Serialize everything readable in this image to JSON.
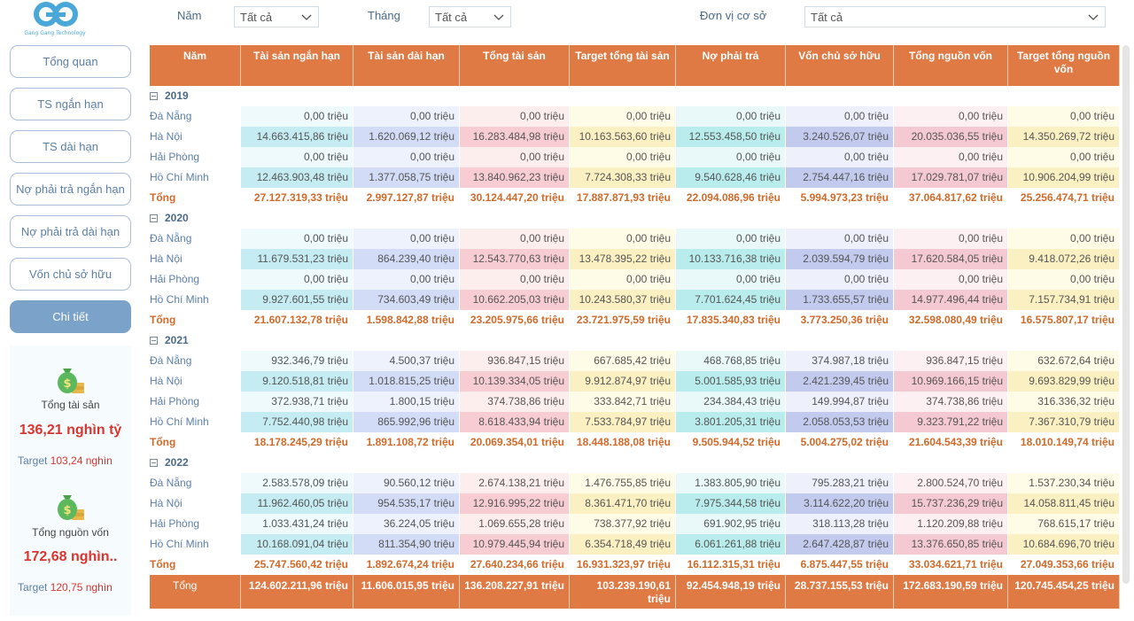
{
  "logo": {
    "text": "Gang Gang Technology"
  },
  "nav": [
    {
      "label": "Tổng quan",
      "active": false
    },
    {
      "label": "TS ngắn hạn",
      "active": false
    },
    {
      "label": "TS dài hạn",
      "active": false
    },
    {
      "label": "Nợ phải trả ngắn hạn",
      "active": false
    },
    {
      "label": "Nợ phải trả dài hạn",
      "active": false
    },
    {
      "label": "Vốn chủ sở hữu",
      "active": false
    },
    {
      "label": "Chi tiết",
      "active": true
    }
  ],
  "kpis": [
    {
      "icon": "money-bag-icon",
      "label": "Tổng tài sản",
      "value": "136,21 nghìn tỷ",
      "target_label": "Target",
      "target_value": "103,24 nghìn"
    },
    {
      "icon": "money-bag-icon",
      "label": "Tổng nguồn vốn",
      "value": "172,68 nghìn..",
      "target_label": "Target",
      "target_value": "120,75 nghìn"
    }
  ],
  "filters": [
    {
      "label": "Năm",
      "value": "Tất cả"
    },
    {
      "label": "Tháng",
      "value": "Tất cả"
    },
    {
      "label": "Đơn vị cơ sở",
      "value": "Tất cả"
    }
  ],
  "table": {
    "columns": [
      "Năm",
      "Tài sản ngắn hạn",
      "Tài sản dài hạn",
      "Tổng tài sản",
      "Target tổng tài sản",
      "Nợ phải trả",
      "Vốn chủ sở hữu",
      "Tổng nguồn vốn",
      "Target tổng nguồn vốn"
    ],
    "years": [
      {
        "year": "2019",
        "rows": [
          {
            "name": "Đà Nẵng",
            "values": [
              "0,00 triệu",
              "0,00 triệu",
              "0,00 triệu",
              "0,00 triệu",
              "0,00 triệu",
              "0,00 triệu",
              "0,00 triệu",
              "0,00 triệu"
            ]
          },
          {
            "name": "Hà Nội",
            "values": [
              "14.663.415,86 triệu",
              "1.620.069,12 triệu",
              "16.283.484,98 triệu",
              "10.163.563,60 triệu",
              "12.553.458,50 triệu",
              "3.240.526,07 triệu",
              "20.035.036,55 triệu",
              "14.350.269,72 triệu"
            ]
          },
          {
            "name": "Hải Phòng",
            "values": [
              "0,00 triệu",
              "0,00 triệu",
              "0,00 triệu",
              "0,00 triệu",
              "0,00 triệu",
              "0,00 triệu",
              "0,00 triệu",
              "0,00 triệu"
            ]
          },
          {
            "name": "Hồ Chí Minh",
            "values": [
              "12.463.903,48 triệu",
              "1.377.058,75 triệu",
              "13.840.962,23 triệu",
              "7.724.308,33 triệu",
              "9.540.628,46 triệu",
              "2.754.447,16 triệu",
              "17.029.781,07 triệu",
              "10.906.204,99 triệu"
            ]
          }
        ],
        "total": {
          "name": "Tổng",
          "values": [
            "27.127.319,33 triệu",
            "2.997.127,87 triệu",
            "30.124.447,20 triệu",
            "17.887.871,93 triệu",
            "22.094.086,96 triệu",
            "5.994.973,23 triệu",
            "37.064.817,62 triệu",
            "25.256.474,71 triệu"
          ]
        }
      },
      {
        "year": "2020",
        "rows": [
          {
            "name": "Đà Nẵng",
            "values": [
              "0,00 triệu",
              "0,00 triệu",
              "0,00 triệu",
              "0,00 triệu",
              "0,00 triệu",
              "0,00 triệu",
              "0,00 triệu",
              "0,00 triệu"
            ]
          },
          {
            "name": "Hà Nội",
            "values": [
              "11.679.531,23 triệu",
              "864.239,40 triệu",
              "12.543.770,63 triệu",
              "13.478.395,22 triệu",
              "10.133.716,38 triệu",
              "2.039.594,79 triệu",
              "17.620.584,05 triệu",
              "9.418.072,26 triệu"
            ]
          },
          {
            "name": "Hải Phòng",
            "values": [
              "0,00 triệu",
              "0,00 triệu",
              "0,00 triệu",
              "0,00 triệu",
              "0,00 triệu",
              "0,00 triệu",
              "0,00 triệu",
              "0,00 triệu"
            ]
          },
          {
            "name": "Hồ Chí Minh",
            "values": [
              "9.927.601,55 triệu",
              "734.603,49 triệu",
              "10.662.205,03 triệu",
              "10.243.580,37 triệu",
              "7.701.624,45 triệu",
              "1.733.655,57 triệu",
              "14.977.496,44 triệu",
              "7.157.734,91 triệu"
            ]
          }
        ],
        "total": {
          "name": "Tổng",
          "values": [
            "21.607.132,78 triệu",
            "1.598.842,88 triệu",
            "23.205.975,66 triệu",
            "23.721.975,59 triệu",
            "17.835.340,83 triệu",
            "3.773.250,36 triệu",
            "32.598.080,49 triệu",
            "16.575.807,17 triệu"
          ]
        }
      },
      {
        "year": "2021",
        "rows": [
          {
            "name": "Đà Nẵng",
            "values": [
              "932.346,79 triệu",
              "4.500,37 triệu",
              "936.847,15 triệu",
              "667.685,42 triệu",
              "468.768,85 triệu",
              "374.987,18 triệu",
              "936.847,15 triệu",
              "632.672,64 triệu"
            ]
          },
          {
            "name": "Hà Nội",
            "values": [
              "9.120.518,81 triệu",
              "1.018.815,25 triệu",
              "10.139.334,05 triệu",
              "9.912.874,97 triệu",
              "5.001.585,93 triệu",
              "2.421.239,45 triệu",
              "10.969.166,15 triệu",
              "9.693.829,99 triệu"
            ]
          },
          {
            "name": "Hải Phòng",
            "values": [
              "372.938,71 triệu",
              "1.800,15 triệu",
              "374.738,86 triệu",
              "333.842,71 triệu",
              "234.384,43 triệu",
              "149.994,87 triệu",
              "374.738,86 triệu",
              "316.336,32 triệu"
            ]
          },
          {
            "name": "Hồ Chí Minh",
            "values": [
              "7.752.440,98 triệu",
              "865.992,96 triệu",
              "8.618.433,94 triệu",
              "7.533.784,97 triệu",
              "3.801.205,31 triệu",
              "2.058.053,53 triệu",
              "9.323.791,22 triệu",
              "7.367.310,79 triệu"
            ]
          }
        ],
        "total": {
          "name": "Tổng",
          "values": [
            "18.178.245,29 triệu",
            "1.891.108,72 triệu",
            "20.069.354,01 triệu",
            "18.448.188,08 triệu",
            "9.505.944,52 triệu",
            "5.004.275,02 triệu",
            "21.604.543,39 triệu",
            "18.010.149,74 triệu"
          ]
        }
      },
      {
        "year": "2022",
        "rows": [
          {
            "name": "Đà Nẵng",
            "values": [
              "2.583.578,09 triệu",
              "90.560,12 triệu",
              "2.674.138,21 triệu",
              "1.476.755,85 triệu",
              "1.383.805,90 triệu",
              "795.283,21 triệu",
              "2.800.524,70 triệu",
              "1.537.230,34 triệu"
            ]
          },
          {
            "name": "Hà Nội",
            "values": [
              "11.962.460,05 triệu",
              "954.535,17 triệu",
              "12.916.995,22 triệu",
              "8.361.471,70 triệu",
              "7.975.344,58 triệu",
              "3.114.622,20 triệu",
              "15.737.236,29 triệu",
              "14.058.811,45 triệu"
            ]
          },
          {
            "name": "Hải Phòng",
            "values": [
              "1.033.431,24 triệu",
              "36.224,05 triệu",
              "1.069.655,28 triệu",
              "738.377,92 triệu",
              "691.902,95 triệu",
              "318.113,28 triệu",
              "1.120.209,88 triệu",
              "768.615,17 triệu"
            ]
          },
          {
            "name": "Hồ Chí Minh",
            "values": [
              "10.168.091,04 triệu",
              "811.354,90 triệu",
              "10.979.445,94 triệu",
              "6.354.718,49 triệu",
              "6.061.261,88 triệu",
              "2.647.428,87 triệu",
              "13.376.650,85 triệu",
              "10.684.696,70 triệu"
            ]
          }
        ],
        "total": {
          "name": "Tổng",
          "values": [
            "25.747.560,42 triệu",
            "1.892.674,24 triệu",
            "27.640.234,66 triệu",
            "16.931.323,97 triệu",
            "16.112.315,31 triệu",
            "6.875.447,55 triệu",
            "33.034.621,71 triệu",
            "27.049.353,66 triệu"
          ]
        }
      }
    ],
    "grand_total": {
      "name": "Tổng",
      "values": [
        "124.602.211,96 triệu",
        "11.606.015,95 triệu",
        "136.208.227,91 triệu",
        "103.239.190,61 triệu",
        "92.454.948,19 triệu",
        "28.737.155,53 triệu",
        "172.683.190,59 triệu",
        "120.745.454,25 triệu"
      ]
    },
    "colors": {
      "header": "#e07a45",
      "col_bg_light": [
        "#eefafc",
        "#eef2fc",
        "#fdeeee",
        "#fefbe6",
        "#e9f8f8",
        "#eef0fb",
        "#fdf0f2",
        "#fefbe6"
      ],
      "col_bg_strong": [
        "#c4ecf2",
        "#d3dcf6",
        "#f7cdd3",
        "#fbf0c2",
        "#b9ecec",
        "#c2caee",
        "#f4c9d2",
        "#fbf0c2"
      ]
    }
  }
}
